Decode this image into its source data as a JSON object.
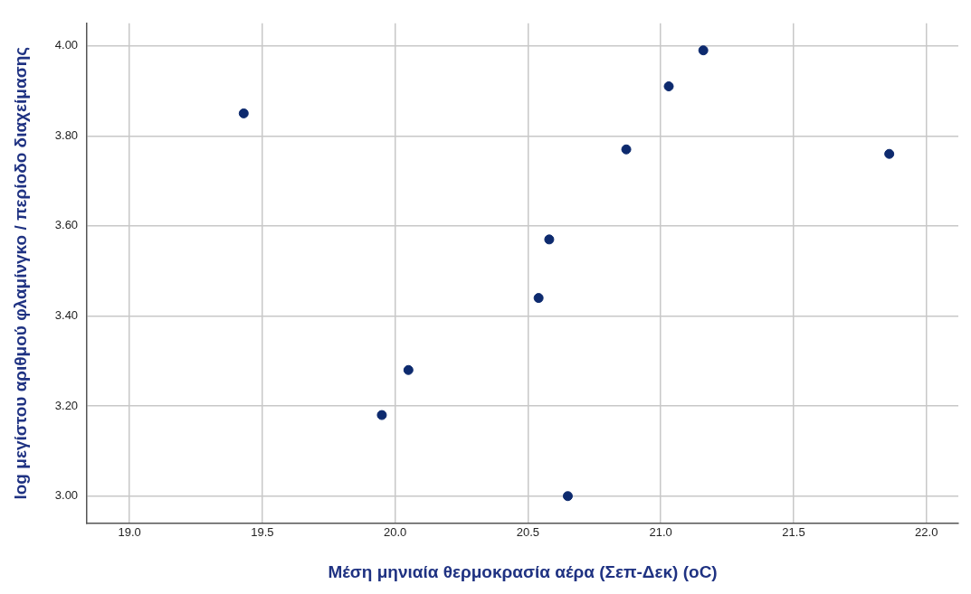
{
  "chart_data": {
    "type": "scatter",
    "xlabel": "Μέση μηνιαία θερμοκρασία αέρα (Σεπ-Δεκ) (oC)",
    "ylabel": "log μεγίστου αριθμού φλαμίνγκο / περίοδο διαχείμασης",
    "series": [
      {
        "color": "#0d2a6e",
        "x": [
          19.43,
          19.95,
          20.05,
          20.54,
          20.58,
          20.65,
          20.87,
          21.03,
          21.16,
          21.86
        ],
        "values": [
          3.85,
          3.18,
          3.28,
          3.44,
          3.57,
          3.0,
          3.77,
          3.91,
          3.99,
          3.76
        ]
      }
    ],
    "xlim": [
      18.84,
      22.12
    ],
    "ylim": [
      2.94,
      4.05
    ],
    "xticks": [
      {
        "value": 19,
        "label": "19.0"
      },
      {
        "value": 19.5,
        "label": "19.5"
      },
      {
        "value": 20,
        "label": "20.0"
      },
      {
        "value": 20.5,
        "label": "20.5"
      },
      {
        "value": 21,
        "label": "21.0"
      },
      {
        "value": 21.5,
        "label": "21.5"
      },
      {
        "value": 22,
        "label": "22.0"
      }
    ],
    "yticks": [
      {
        "value": 3,
        "label": "3.00"
      },
      {
        "value": 3.2,
        "label": "3.20"
      },
      {
        "value": 3.4,
        "label": "3.40"
      },
      {
        "value": 3.6,
        "label": "3.60"
      },
      {
        "value": 3.8,
        "label": "3.80"
      },
      {
        "value": 4,
        "label": "4.00"
      }
    ],
    "grid": true,
    "marker": "circle"
  }
}
